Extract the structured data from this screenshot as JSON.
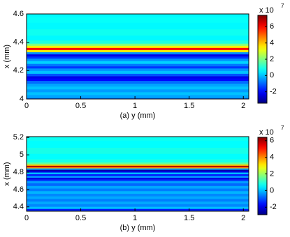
{
  "chart_data": [
    {
      "type": "heatmap",
      "colormap": "jet",
      "xlabel": "(a) y (mm)",
      "ylabel": "x (mm)",
      "xlim": [
        0,
        2.05
      ],
      "xticks": [
        0,
        0.5,
        1,
        1.5,
        2
      ],
      "ylim": [
        4.0,
        4.6
      ],
      "yticks": [
        4,
        4.2,
        4.4,
        4.6
      ],
      "rows": [
        4.0,
        4.02,
        4.04,
        4.06,
        4.08,
        4.1,
        4.12,
        4.14,
        4.155,
        4.17,
        4.19,
        4.21,
        4.225,
        4.24,
        4.26,
        4.28,
        4.295,
        4.31,
        4.325,
        4.34,
        4.355,
        4.37,
        4.385,
        4.4,
        4.43,
        4.47,
        4.52,
        4.56,
        4.6
      ],
      "values": [
        -0.8,
        -0.3,
        0,
        -0.4,
        0,
        -0.3,
        -0.9,
        -2,
        -2.3,
        -1.2,
        0,
        -0.5,
        -1.5,
        -0.8,
        0.2,
        -0.5,
        -1.5,
        -2.3,
        -0.5,
        3.5,
        6,
        3.5,
        2,
        1,
        0.6,
        0.8,
        0.6,
        0.7,
        0.6
      ],
      "clim": [
        -3.4,
        7.4
      ],
      "cticks": [
        -2,
        0,
        2,
        4,
        6
      ],
      "colorbar_multiplier": "x 10",
      "colorbar_exponent": "7"
    },
    {
      "type": "heatmap",
      "colormap": "jet",
      "xlabel": "(b) y (mm)",
      "ylabel": "x (mm)",
      "xlim": [
        0,
        2.05
      ],
      "xticks": [
        0,
        0.5,
        1,
        1.5,
        2
      ],
      "ylim": [
        4.35,
        5.21
      ],
      "yticks": [
        4.4,
        4.6,
        4.8,
        5,
        5.2
      ],
      "rows": [
        4.35,
        4.37,
        4.39,
        4.42,
        4.45,
        4.48,
        4.51,
        4.54,
        4.57,
        4.6,
        4.63,
        4.66,
        4.69,
        4.71,
        4.73,
        4.75,
        4.77,
        4.79,
        4.81,
        4.825,
        4.84,
        4.855,
        4.87,
        4.885,
        4.9,
        4.93,
        4.98,
        5.05,
        5.12,
        5.21
      ],
      "values": [
        -0.5,
        -1.5,
        0,
        -0.5,
        -0.2,
        -0.6,
        -0.2,
        -0.5,
        -0.1,
        -0.6,
        -0.2,
        -0.8,
        -0.3,
        -1.2,
        -2,
        -0.3,
        -1.5,
        0,
        -2,
        -2.5,
        0,
        4,
        6,
        3.5,
        1.5,
        0.8,
        0.6,
        0.8,
        0.6,
        0.7
      ],
      "clim": [
        -2.9,
        6.4
      ],
      "cticks": [
        -2,
        0,
        2,
        4,
        6
      ],
      "colorbar_multiplier": "x 10",
      "colorbar_exponent": "7"
    }
  ]
}
